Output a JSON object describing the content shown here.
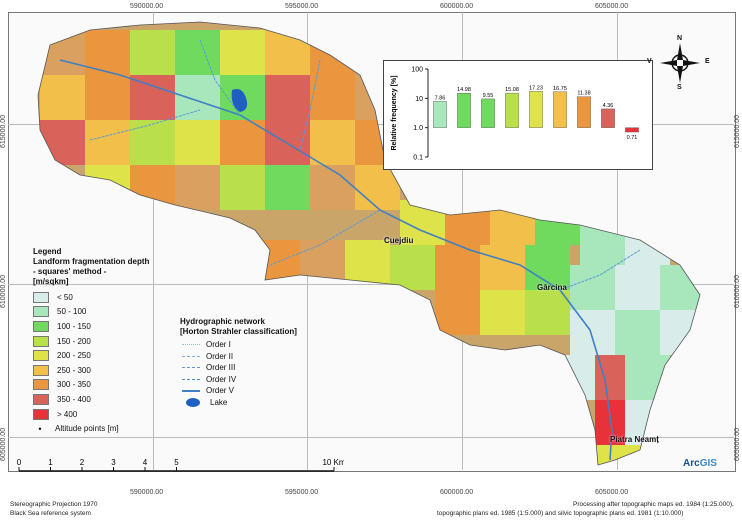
{
  "map": {
    "coords_top": [
      "590000.00",
      "595000.00",
      "600000.00",
      "605000.00"
    ],
    "coords_bottom": [
      "590000.00",
      "595000.00",
      "600000.00",
      "605000.00"
    ],
    "coords_left": [
      "615000.00",
      "610000.00",
      "605000.00"
    ],
    "coords_right": [
      "615000.00",
      "610000.00",
      "605000.00"
    ],
    "towns": [
      "Cuejdiu",
      "Gârcina",
      "Piatra Neamț"
    ]
  },
  "legend": {
    "title_lines": [
      "Legend",
      "Landform fragmentation depth",
      "- squares' method -",
      "[m/sqkm]"
    ],
    "classes": [
      {
        "label": "< 50",
        "color": "#d8ecea"
      },
      {
        "label": "50 - 100",
        "color": "#a8e6bc"
      },
      {
        "label": "100 - 150",
        "color": "#6fda5e"
      },
      {
        "label": "150 - 200",
        "color": "#b9e04a"
      },
      {
        "label": "200 - 250",
        "color": "#dfe34a"
      },
      {
        "label": "250 - 300",
        "color": "#f2c04a"
      },
      {
        "label": "300 - 350",
        "color": "#e9963e"
      },
      {
        "label": "350 - 400",
        "color": "#d9625a"
      },
      {
        "label": "> 400",
        "color": "#e8323a"
      }
    ],
    "altitude_label": "Altitude points [m]"
  },
  "hydro": {
    "title_lines": [
      "Hydrographic network",
      "[Horton Strahler classification]"
    ],
    "orders": [
      "Order I",
      "Order II",
      "Order III",
      "Order IV",
      "Order V"
    ],
    "lake_label": "Lake"
  },
  "scalebar": {
    "ticks": [
      "0",
      "1",
      "2",
      "3",
      "4",
      "5",
      "10 Km"
    ],
    "values": [
      0,
      1,
      2,
      3,
      4,
      5,
      10
    ]
  },
  "compass": {
    "n": "N",
    "e": "E",
    "s": "S",
    "w": "V"
  },
  "chart_data": {
    "type": "bar",
    "ylabel": "Relative frequency [%]",
    "yscale": "log",
    "ylim": [
      0.1,
      100
    ],
    "yticks": [
      "100",
      "10",
      "1.0",
      "0.1"
    ],
    "categories": [
      "< 50",
      "50 - 100",
      "100 - 150",
      "150 - 200",
      "200 - 250",
      "250 - 300",
      "300 - 350",
      "350 - 400",
      "> 400"
    ],
    "values": [
      7.86,
      14.98,
      9.55,
      15.08,
      17.23,
      16.75,
      11.38,
      4.36,
      0.71
    ],
    "value_labels": [
      "7.86",
      "14.98",
      "9.55",
      "15.08",
      "17.23",
      "16.75",
      "11.38",
      "4.36",
      "0.71"
    ],
    "colors": [
      "#a8e6bc",
      "#6fda5e",
      "#6fda5e",
      "#b9e04a",
      "#dfe34a",
      "#f2c04a",
      "#e9963e",
      "#d9625a",
      "#e8323a"
    ]
  },
  "footer": {
    "left": [
      "Stereographic Projection 1970",
      "Black Sea reference system"
    ],
    "right": [
      "Processing after topographic maps ed. 1984 (1:25.000),",
      "topographic plans ed. 1985 (1:5.000) and silvic topographic plans ed. 1981 (1:10.000)"
    ]
  },
  "logo": {
    "arc": "Arc",
    "gis": "GIS"
  }
}
